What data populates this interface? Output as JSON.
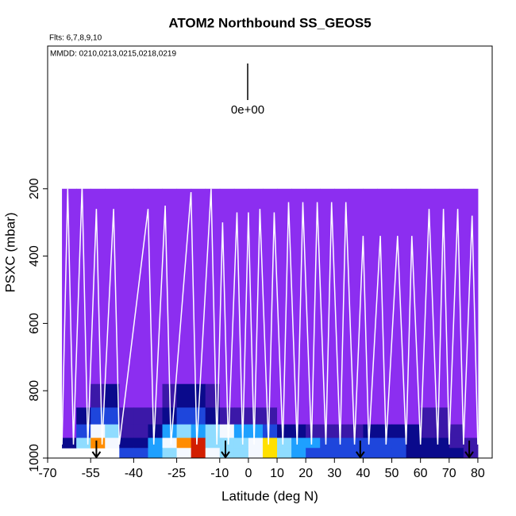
{
  "chart_data": {
    "type": "curtain",
    "title": "ATOM2 Northbound SS_GEOS5",
    "flights_label": "Flts: 6,7,8,9,10",
    "dates_label": "MMDD: 0210,0213,0215,0218,0219",
    "x_label": "Latitude (deg N)",
    "y_label": "PSXC (mbar)",
    "xlim": [
      -70,
      85
    ],
    "xticks": [
      -70,
      -55,
      -40,
      -25,
      -10,
      0,
      10,
      20,
      30,
      40,
      50,
      60,
      70,
      80
    ],
    "ylim": [
      1000,
      -224
    ],
    "yticks": [
      200,
      400,
      600,
      800,
      1000
    ],
    "zlim": [
      0,
      10
    ],
    "colorbar_ticks": [
      {
        "value": 0,
        "label": "0e+00"
      }
    ],
    "colors": [
      "#8c2ef0",
      "#3b18a8",
      "#0a0a8c",
      "#1e46dc",
      "#1ea0ff",
      "#8fdcff",
      "#f4f8ff",
      "#ffe000",
      "#ff8c00",
      "#d21e00",
      "#8b0000"
    ],
    "lat_edges": [
      -65,
      -60,
      -55,
      -50,
      -45,
      -40,
      -35,
      -30,
      -25,
      -20,
      -15,
      -10,
      -5,
      0,
      5,
      10,
      15,
      20,
      25,
      30,
      35,
      40,
      45,
      50,
      55,
      60,
      65,
      70,
      75,
      80
    ],
    "p_edges": [
      200,
      780,
      850,
      900,
      940,
      970,
      1000
    ],
    "z": [
      [
        0,
        0,
        0,
        0,
        0,
        0,
        0,
        0,
        0,
        0,
        0,
        0,
        0,
        0,
        0,
        0,
        0,
        0,
        0,
        0,
        0,
        0,
        0,
        0,
        0,
        0,
        0,
        0,
        0
      ],
      [
        0,
        0,
        1,
        2,
        0,
        0,
        0,
        1,
        2,
        2,
        1,
        0,
        0,
        0,
        0,
        0,
        0,
        0,
        0,
        0,
        0,
        0,
        0,
        0,
        0,
        0,
        0,
        0,
        0
      ],
      [
        0,
        2,
        3,
        3,
        1,
        1,
        1,
        2,
        3,
        3,
        2,
        1,
        1,
        1,
        1,
        0,
        0,
        0,
        0,
        0,
        0,
        0,
        0,
        0,
        0,
        1,
        1,
        0,
        0
      ],
      [
        0,
        3,
        6,
        5,
        1,
        1,
        2,
        4,
        5,
        4,
        5,
        6,
        4,
        4,
        3,
        2,
        2,
        1,
        1,
        1,
        1,
        2,
        2,
        2,
        2,
        1,
        1,
        1,
        0
      ],
      [
        2,
        5,
        8,
        6,
        2,
        2,
        4,
        6,
        8,
        9,
        5,
        5,
        5,
        6,
        7,
        5,
        4,
        4,
        3,
        3,
        3,
        3,
        3,
        3,
        2,
        2,
        2,
        1,
        1
      ],
      [
        null,
        null,
        null,
        null,
        3,
        3,
        4,
        5,
        6,
        9,
        6,
        5,
        5,
        6,
        7,
        5,
        4,
        3,
        3,
        3,
        3,
        3,
        3,
        3,
        2,
        2,
        2,
        2,
        1
      ]
    ],
    "track": {
      "x": [
        -67,
        -65,
        -63,
        -61,
        -58,
        -56,
        -53,
        -51,
        -47,
        -45,
        -35,
        -33,
        -29,
        -27,
        -20,
        -18,
        -13,
        -11,
        -9,
        -7,
        -4,
        -2,
        0,
        2,
        4,
        7,
        9,
        12,
        14,
        17,
        19,
        22,
        24,
        27,
        29,
        32,
        34,
        37,
        40,
        42,
        46,
        48,
        52,
        55,
        57,
        60,
        63,
        66,
        68,
        70,
        73,
        75,
        78,
        80
      ],
      "y": [
        250,
        960,
        200,
        960,
        190,
        960,
        260,
        960,
        260,
        960,
        260,
        960,
        250,
        960,
        210,
        960,
        200,
        960,
        300,
        960,
        270,
        960,
        270,
        960,
        260,
        960,
        270,
        960,
        240,
        960,
        240,
        960,
        240,
        960,
        240,
        960,
        240,
        960,
        340,
        960,
        340,
        960,
        340,
        960,
        340,
        960,
        260,
        960,
        260,
        960,
        260,
        960,
        280,
        960
      ],
      "color": "#ffffff"
    },
    "markers": [
      -53,
      -8,
      39,
      77
    ]
  }
}
